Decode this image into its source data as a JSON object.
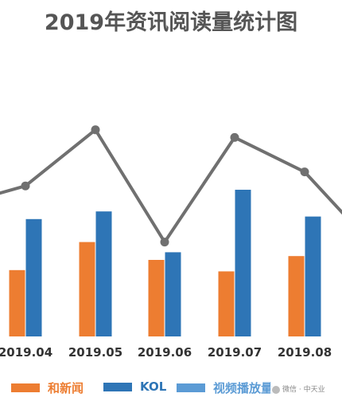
{
  "page": {
    "title": "2019年资讯阅读量统计图"
  },
  "chart_data": {
    "type": "bar",
    "categories": [
      "2019.04",
      "2019.05",
      "2019.06",
      "2019.07",
      "2019.08"
    ],
    "series": [
      {
        "name": "和新闻",
        "kind": "bar",
        "color": "#ED7D31",
        "values": [
          5.2,
          7.4,
          6.0,
          5.1,
          6.3
        ]
      },
      {
        "name": "KOL",
        "kind": "bar",
        "color": "#2E75B6",
        "values": [
          9.2,
          9.8,
          6.6,
          11.5,
          9.4
        ]
      },
      {
        "name": "视频播放量",
        "kind": "line",
        "color": "#707070",
        "values": [
          11.8,
          16.2,
          7.4,
          15.6,
          12.9
        ]
      }
    ],
    "ylim": [
      0,
      24
    ],
    "grid": false,
    "legend_position": "bottom",
    "data_labels_visible": false
  },
  "legend": {
    "items": [
      {
        "label": "和新闻",
        "color": "#ED7D31"
      },
      {
        "label": "KOL",
        "color": "#2E75B6"
      },
      {
        "label": "视频播放量",
        "color": "#5B9BD5"
      }
    ]
  },
  "watermark": {
    "text": "微信 · 中天业"
  }
}
